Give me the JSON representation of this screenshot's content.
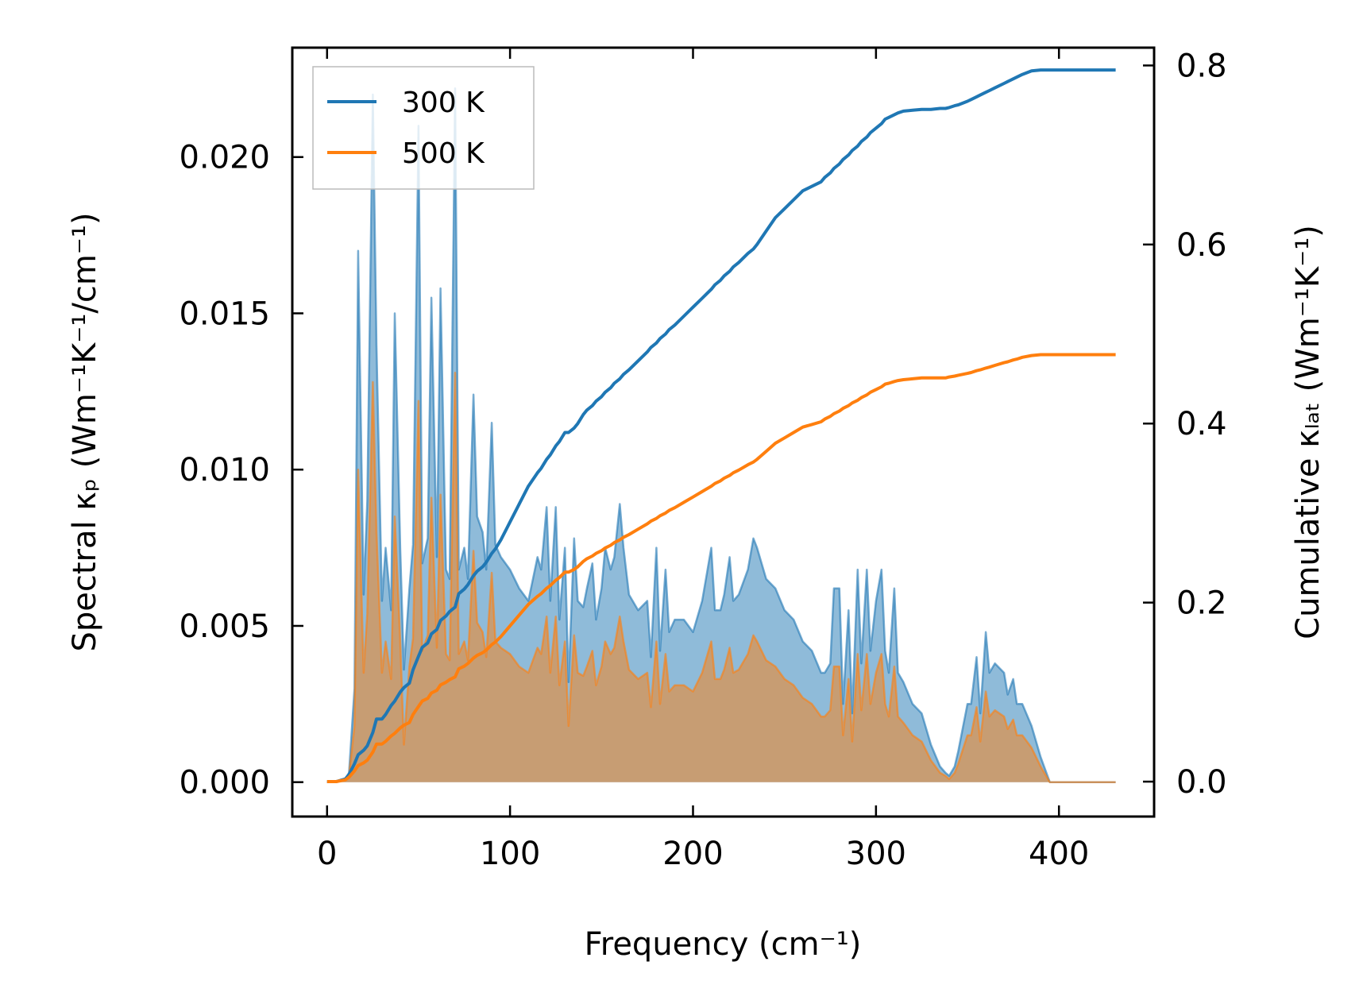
{
  "chart_data": {
    "type": "line",
    "x": [
      0,
      5,
      10,
      12,
      15,
      17,
      20,
      22,
      25,
      27,
      30,
      32,
      35,
      37,
      40,
      42,
      45,
      47,
      50,
      52,
      55,
      57,
      60,
      62,
      65,
      67,
      70,
      72,
      75,
      77,
      80,
      82,
      85,
      87,
      90,
      92,
      95,
      100,
      105,
      110,
      115,
      117,
      120,
      122,
      125,
      127,
      130,
      132,
      135,
      137,
      140,
      142,
      145,
      147,
      150,
      152,
      155,
      157,
      160,
      162,
      165,
      170,
      175,
      177,
      180,
      182,
      185,
      187,
      190,
      195,
      200,
      205,
      210,
      212,
      215,
      217,
      220,
      222,
      225,
      230,
      233,
      235,
      240,
      245,
      250,
      255,
      260,
      265,
      270,
      272,
      275,
      277,
      280,
      282,
      285,
      287,
      290,
      292,
      295,
      297,
      300,
      303,
      305,
      307,
      310,
      312,
      315,
      320,
      325,
      330,
      335,
      338,
      340,
      343,
      345,
      350,
      352,
      355,
      357,
      360,
      362,
      365,
      370,
      372,
      375,
      377,
      380,
      385,
      390,
      395,
      400,
      410,
      420,
      431
    ],
    "xlabel": "Frequency (cm⁻¹)",
    "ylabel_left": "Spectral κₚ (Wm⁻¹K⁻¹/cm⁻¹)",
    "ylabel_right": "Cumulative κₗₐₜ (Wm⁻¹K⁻¹)",
    "xlim": [
      -19,
      452
    ],
    "ylim_left": [
      -0.0011,
      0.0235
    ],
    "ylim_right": [
      -0.039,
      0.8199
    ],
    "xticks": [
      0,
      100,
      200,
      300,
      400
    ],
    "yticks_left": [
      0.0,
      0.005,
      0.01,
      0.015,
      0.02
    ],
    "yticks_right": [
      0.0,
      0.2,
      0.4,
      0.6,
      0.8
    ],
    "xtick_labels": [
      "0",
      "100",
      "200",
      "300",
      "400"
    ],
    "ytick_labels_left": [
      "0.000",
      "0.005",
      "0.010",
      "0.015",
      "0.020"
    ],
    "ytick_labels_right": [
      "0.0",
      "0.2",
      "0.4",
      "0.6",
      "0.8"
    ],
    "legend_position": "top-left",
    "series": [
      {
        "name": "300 K",
        "color": "#1f77b4",
        "spectral": [
          0,
          0,
          0.0001,
          0.0003,
          0.003,
          0.017,
          0.006,
          0.009,
          0.022,
          0.014,
          0.0058,
          0.0075,
          0.0055,
          0.015,
          0.0075,
          0.0036,
          0.0062,
          0.0076,
          0.021,
          0.007,
          0.0078,
          0.0155,
          0.0072,
          0.0158,
          0.0068,
          0.0065,
          0.0222,
          0.0068,
          0.0075,
          0.0065,
          0.0124,
          0.0085,
          0.008,
          0.0068,
          0.0115,
          0.0076,
          0.0072,
          0.0068,
          0.0062,
          0.0058,
          0.0072,
          0.0068,
          0.0088,
          0.0058,
          0.0088,
          0.0052,
          0.0075,
          0.0032,
          0.0078,
          0.0058,
          0.0056,
          0.0062,
          0.007,
          0.0052,
          0.0062,
          0.0075,
          0.0068,
          0.0072,
          0.0089,
          0.0075,
          0.006,
          0.0055,
          0.0058,
          0.004,
          0.0075,
          0.0042,
          0.0068,
          0.0048,
          0.0052,
          0.0052,
          0.0048,
          0.0058,
          0.0075,
          0.0055,
          0.0055,
          0.006,
          0.0072,
          0.0058,
          0.006,
          0.0068,
          0.0078,
          0.0075,
          0.0065,
          0.0062,
          0.0055,
          0.0052,
          0.0045,
          0.0042,
          0.0035,
          0.0035,
          0.0038,
          0.0062,
          0.0062,
          0.0025,
          0.0055,
          0.0022,
          0.0068,
          0.0038,
          0.0068,
          0.0042,
          0.0058,
          0.0068,
          0.0042,
          0.0035,
          0.0062,
          0.0035,
          0.0032,
          0.0025,
          0.0022,
          0.0012,
          0.0005,
          0.0003,
          0.0002,
          0.0005,
          0.001,
          0.0025,
          0.0025,
          0.004,
          0.0022,
          0.0048,
          0.0035,
          0.0038,
          0.0035,
          0.0028,
          0.0033,
          0.0025,
          0.0025,
          0.0018,
          0.0008,
          0,
          0,
          0,
          0,
          0
        ],
        "cumulative": [
          0,
          0,
          0.003,
          0.008,
          0.02,
          0.03,
          0.035,
          0.04,
          0.055,
          0.07,
          0.07,
          0.075,
          0.085,
          0.09,
          0.1,
          0.105,
          0.11,
          0.125,
          0.14,
          0.15,
          0.155,
          0.165,
          0.17,
          0.18,
          0.185,
          0.19,
          0.195,
          0.21,
          0.215,
          0.22,
          0.23,
          0.235,
          0.24,
          0.245,
          0.255,
          0.26,
          0.27,
          0.29,
          0.31,
          0.33,
          0.345,
          0.35,
          0.36,
          0.365,
          0.375,
          0.38,
          0.39,
          0.39,
          0.395,
          0.4,
          0.41,
          0.415,
          0.42,
          0.425,
          0.43,
          0.435,
          0.44,
          0.445,
          0.45,
          0.455,
          0.46,
          0.47,
          0.48,
          0.485,
          0.49,
          0.495,
          0.5,
          0.505,
          0.51,
          0.52,
          0.53,
          0.54,
          0.55,
          0.555,
          0.56,
          0.565,
          0.57,
          0.575,
          0.58,
          0.59,
          0.595,
          0.6,
          0.615,
          0.63,
          0.64,
          0.65,
          0.66,
          0.665,
          0.67,
          0.675,
          0.68,
          0.685,
          0.69,
          0.695,
          0.7,
          0.705,
          0.71,
          0.715,
          0.72,
          0.725,
          0.73,
          0.735,
          0.74,
          0.742,
          0.745,
          0.747,
          0.749,
          0.75,
          0.751,
          0.751,
          0.752,
          0.752,
          0.753,
          0.755,
          0.756,
          0.76,
          0.762,
          0.765,
          0.767,
          0.77,
          0.772,
          0.775,
          0.78,
          0.782,
          0.785,
          0.787,
          0.79,
          0.794,
          0.795,
          0.795,
          0.795,
          0.795,
          0.795,
          0.795
        ]
      },
      {
        "name": "500 K",
        "color": "#ff7f0e",
        "spectral": [
          0,
          0,
          0.0001,
          0.0002,
          0.0018,
          0.01,
          0.0035,
          0.0054,
          0.0128,
          0.008,
          0.0035,
          0.0045,
          0.0033,
          0.0085,
          0.0045,
          0.0012,
          0.0037,
          0.0046,
          0.0122,
          0.0042,
          0.0047,
          0.0091,
          0.0043,
          0.0092,
          0.0041,
          0.0039,
          0.0131,
          0.0041,
          0.0045,
          0.0039,
          0.0074,
          0.0051,
          0.0048,
          0.004,
          0.0067,
          0.0045,
          0.0043,
          0.0041,
          0.0037,
          0.0035,
          0.0043,
          0.0041,
          0.0053,
          0.0035,
          0.0053,
          0.0031,
          0.0045,
          0.0018,
          0.0047,
          0.0035,
          0.0034,
          0.0037,
          0.0042,
          0.0031,
          0.0037,
          0.0045,
          0.0041,
          0.0043,
          0.0053,
          0.0045,
          0.0036,
          0.0033,
          0.0035,
          0.0024,
          0.0045,
          0.0025,
          0.0041,
          0.0029,
          0.0031,
          0.0031,
          0.0029,
          0.0035,
          0.0045,
          0.0033,
          0.0033,
          0.0036,
          0.0043,
          0.0035,
          0.0036,
          0.0041,
          0.0047,
          0.0045,
          0.0039,
          0.0037,
          0.0033,
          0.0031,
          0.0027,
          0.0025,
          0.0021,
          0.0021,
          0.0023,
          0.0037,
          0.0037,
          0.0015,
          0.0033,
          0.0013,
          0.0041,
          0.0023,
          0.0041,
          0.0025,
          0.0035,
          0.0041,
          0.0025,
          0.0021,
          0.0037,
          0.0021,
          0.0019,
          0.0015,
          0.0013,
          0.0007,
          0.0003,
          0.0002,
          0.0001,
          0.0003,
          0.0006,
          0.0015,
          0.0015,
          0.0024,
          0.0013,
          0.0029,
          0.0021,
          0.0023,
          0.0021,
          0.0017,
          0.002,
          0.0015,
          0.0015,
          0.0011,
          0.0005,
          0,
          0,
          0,
          0,
          0
        ],
        "cumulative": [
          0,
          0,
          0.002,
          0.005,
          0.012,
          0.018,
          0.021,
          0.024,
          0.033,
          0.042,
          0.042,
          0.045,
          0.051,
          0.054,
          0.06,
          0.063,
          0.066,
          0.075,
          0.084,
          0.09,
          0.093,
          0.099,
          0.102,
          0.108,
          0.111,
          0.114,
          0.117,
          0.126,
          0.129,
          0.132,
          0.138,
          0.141,
          0.144,
          0.147,
          0.153,
          0.156,
          0.162,
          0.174,
          0.186,
          0.198,
          0.207,
          0.21,
          0.216,
          0.219,
          0.225,
          0.228,
          0.234,
          0.234,
          0.237,
          0.24,
          0.246,
          0.249,
          0.252,
          0.255,
          0.258,
          0.261,
          0.264,
          0.267,
          0.27,
          0.273,
          0.276,
          0.282,
          0.288,
          0.291,
          0.294,
          0.297,
          0.3,
          0.303,
          0.306,
          0.312,
          0.318,
          0.324,
          0.33,
          0.333,
          0.336,
          0.339,
          0.342,
          0.345,
          0.348,
          0.354,
          0.357,
          0.36,
          0.369,
          0.378,
          0.384,
          0.39,
          0.396,
          0.399,
          0.402,
          0.405,
          0.408,
          0.411,
          0.414,
          0.417,
          0.42,
          0.423,
          0.426,
          0.429,
          0.432,
          0.435,
          0.438,
          0.441,
          0.444,
          0.445,
          0.447,
          0.448,
          0.449,
          0.45,
          0.451,
          0.451,
          0.451,
          0.451,
          0.452,
          0.453,
          0.454,
          0.456,
          0.457,
          0.459,
          0.46,
          0.462,
          0.463,
          0.465,
          0.468,
          0.469,
          0.471,
          0.472,
          0.474,
          0.476,
          0.477,
          0.477,
          0.477,
          0.477,
          0.477,
          0.477
        ]
      }
    ]
  }
}
